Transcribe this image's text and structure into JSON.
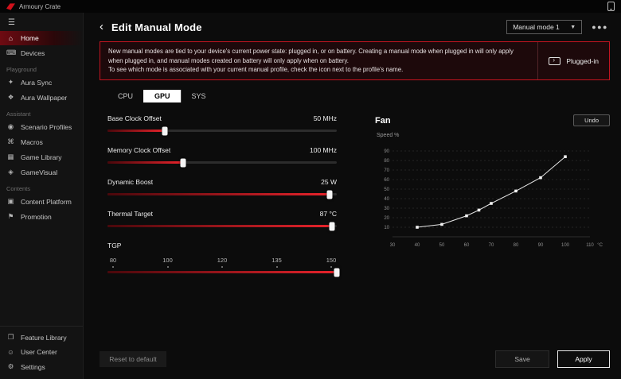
{
  "titlebar": {
    "app_title": "Armoury Crate"
  },
  "sidebar": {
    "groups": [
      {
        "heading": "",
        "items": [
          {
            "label": "Home",
            "active": true
          },
          {
            "label": "Devices"
          }
        ]
      },
      {
        "heading": "Playground",
        "items": [
          {
            "label": "Aura Sync"
          },
          {
            "label": "Aura Wallpaper"
          }
        ]
      },
      {
        "heading": "Assistant",
        "items": [
          {
            "label": "Scenario Profiles"
          },
          {
            "label": "Macros"
          },
          {
            "label": "Game Library"
          },
          {
            "label": "GameVisual"
          }
        ]
      },
      {
        "heading": "Contents",
        "items": [
          {
            "label": "Content Platform"
          },
          {
            "label": "Promotion"
          }
        ]
      }
    ],
    "bottom_items": [
      {
        "label": "Feature Library"
      },
      {
        "label": "User Center"
      },
      {
        "label": "Settings"
      }
    ]
  },
  "header": {
    "title": "Edit Manual Mode",
    "mode_select_value": "Manual mode 1",
    "ellipsis": "●●●"
  },
  "notice": {
    "line1": "New manual modes are tied to your device's current power state: plugged in, or on battery. Creating a manual mode when plugged in will only apply when plugged in, and manual modes created on battery will only apply when on battery.",
    "line2": "To see which mode is associated with your current manual profile, check the icon next to the profile's name.",
    "power_state": "Plugged-in"
  },
  "tabs": [
    {
      "label": "CPU",
      "active": false
    },
    {
      "label": "GPU",
      "active": true
    },
    {
      "label": "SYS",
      "active": false
    }
  ],
  "sliders": [
    {
      "label": "Base Clock Offset",
      "value": "50 MHz",
      "pct": "25%"
    },
    {
      "label": "Memory Clock Offset",
      "value": "100 MHz",
      "pct": "33%"
    },
    {
      "label": "Dynamic Boost",
      "value": "25 W",
      "pct": "97%"
    },
    {
      "label": "Thermal Target",
      "value": "87 °C",
      "pct": "98%"
    },
    {
      "label": "TGP",
      "value": "",
      "pct": "100%",
      "ticks": [
        "80",
        "100",
        "120",
        "135",
        "150"
      ]
    }
  ],
  "fan": {
    "title": "Fan",
    "undo_label": "Undo"
  },
  "footer": {
    "reset_label": "Reset to default",
    "save_label": "Save",
    "apply_label": "Apply"
  },
  "chart_data": {
    "type": "line",
    "title": "Fan",
    "xlabel": "°C",
    "ylabel": "Speed %",
    "x": [
      40,
      50,
      60,
      65,
      70,
      80,
      90,
      100
    ],
    "y": [
      10,
      13,
      22,
      28,
      35,
      48,
      62,
      84
    ],
    "xlim": [
      30,
      110
    ],
    "ylim": [
      0,
      95
    ],
    "xticks": [
      30,
      40,
      50,
      60,
      70,
      80,
      90,
      100,
      110
    ],
    "yticks": [
      10,
      20,
      30,
      40,
      50,
      60,
      70,
      80,
      90
    ],
    "grid": "horizontal dashed",
    "legend": "none",
    "line_color": "#e8e8e8",
    "marker": "square"
  },
  "colors": {
    "accent": "#d0111b",
    "notice_border": "#c41420",
    "active_tab_bg": "#ffffff"
  }
}
